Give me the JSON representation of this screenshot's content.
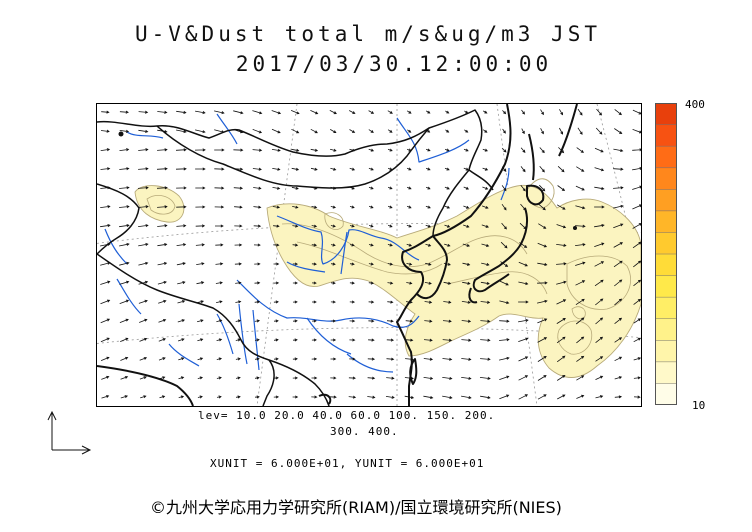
{
  "header": {
    "title_line1": "U-V&Dust total m/s&ug/m3 JST",
    "title_line2": "2017/03/30.12:00:00"
  },
  "colorbar": {
    "max_label": "400",
    "min_label": "10",
    "colors": [
      "#fffde8",
      "#fff9c9",
      "#fff5aa",
      "#fff28a",
      "#ffee66",
      "#ffe94a",
      "#ffdc38",
      "#ffca2e",
      "#ffb628",
      "#ff9f22",
      "#ff871c",
      "#ff6c16",
      "#f75212",
      "#e8400c"
    ]
  },
  "contour_levels": {
    "line1": "lev= 10.0 20.0 40.0 60.0 100. 150. 200.",
    "line2": "300. 400."
  },
  "units_text": "XUNIT = 6.000E+01, YUNIT = 6.000E+01",
  "copyright": "©九州大学応用力学研究所(RIAM)/国立環境研究所(NIES)",
  "map_colors": {
    "dust_fill": "#fbf4c0",
    "dust_contour": "#b8ab7a",
    "coastline": "#111111",
    "border": "#111111",
    "river": "#1f5fd6",
    "grid": "#999999",
    "vector": "#111111"
  }
}
